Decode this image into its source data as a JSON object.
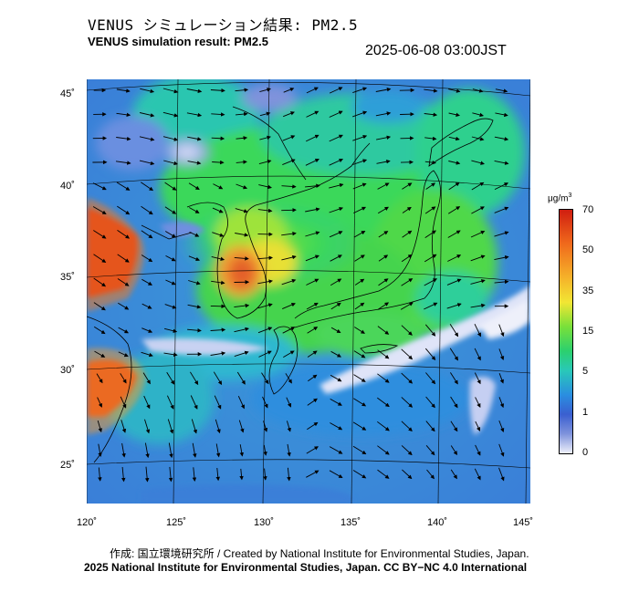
{
  "header": {
    "title_jp": "VENUS シミュレーション結果: PM2.5",
    "title_en": "VENUS simulation result: PM2.5",
    "timestamp": "2025-06-08 03:00JST"
  },
  "map": {
    "lat_labels": [
      "45˚",
      "40˚",
      "35˚",
      "30˚",
      "25˚"
    ],
    "lon_labels": [
      "120˚",
      "125˚",
      "130˚",
      "135˚",
      "140˚",
      "145˚"
    ]
  },
  "colorbar": {
    "unit_html": "μg/m<sup>3</sup>",
    "unit": "μg/m3",
    "tick_labels": [
      "70",
      "50",
      "35",
      "15",
      "5",
      "1",
      "0"
    ],
    "colors": [
      "#d01e10",
      "#f06a1c",
      "#f5b32a",
      "#f2e634",
      "#79e03a",
      "#2bd06e",
      "#29c8b8",
      "#2a8ee0",
      "#7f93dc",
      "#eef0fa"
    ]
  },
  "footer": {
    "credit": "作成: 国立環境研究所 / Created by National Institute for Environmental Studies, Japan.",
    "copyright": "2025 National Institute for Environmental Studies, Japan. CC BY−NC 4.0 International"
  }
}
